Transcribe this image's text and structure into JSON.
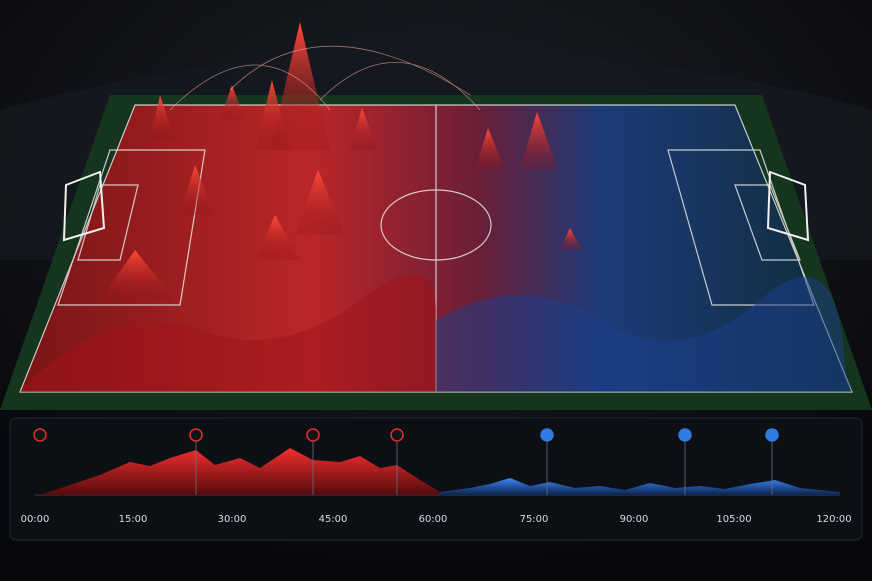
{
  "timeline": {
    "ticks": [
      "00:00",
      "15:00",
      "30:00",
      "45:00",
      "60:00",
      "75:00",
      "90:00",
      "105:00",
      "120:00"
    ]
  }
}
